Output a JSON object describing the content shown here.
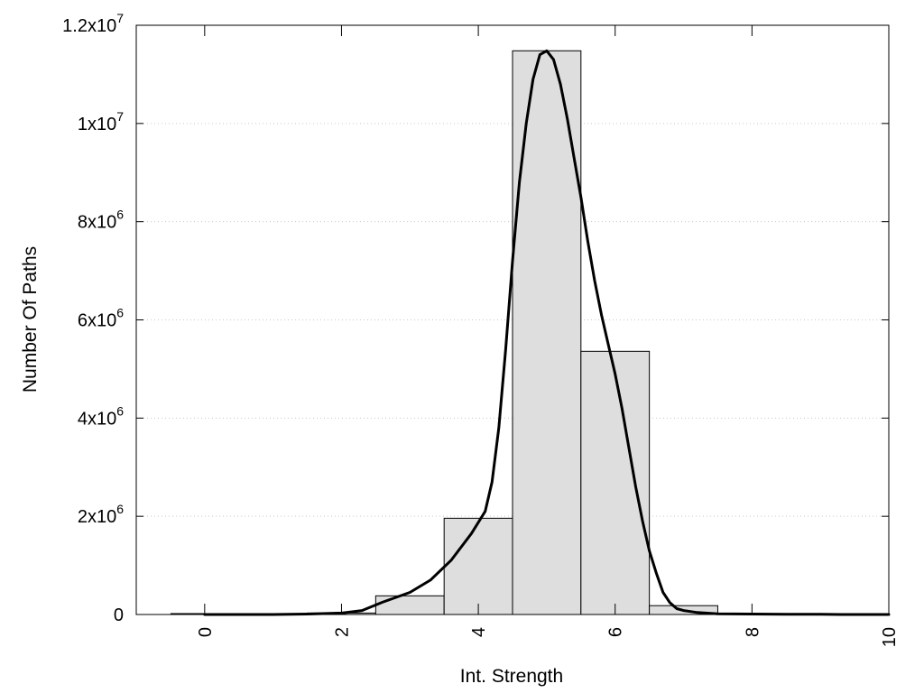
{
  "chart_data": {
    "type": "bar",
    "title": "",
    "xlabel": "Int. Strength",
    "ylabel": "Number Of Paths",
    "xlim": [
      -1,
      10
    ],
    "ylim": [
      0,
      12000000
    ],
    "grid": "horizontal dotted",
    "legend": "none",
    "x_ticks": [
      {
        "value": 0,
        "label": "0"
      },
      {
        "value": 2,
        "label": "2"
      },
      {
        "value": 4,
        "label": "4"
      },
      {
        "value": 6,
        "label": "6"
      },
      {
        "value": 8,
        "label": "8"
      },
      {
        "value": 10,
        "label": "10"
      }
    ],
    "y_ticks": [
      {
        "value": 0,
        "base": "0",
        "exp": ""
      },
      {
        "value": 2000000,
        "base": "2x10",
        "exp": "6"
      },
      {
        "value": 4000000,
        "base": "4x10",
        "exp": "6"
      },
      {
        "value": 6000000,
        "base": "6x10",
        "exp": "6"
      },
      {
        "value": 8000000,
        "base": "8x10",
        "exp": "6"
      },
      {
        "value": 10000000,
        "base": "1x10",
        "exp": "7"
      },
      {
        "value": 12000000,
        "base": "1.2x10",
        "exp": "7"
      }
    ],
    "bars": [
      {
        "x": 0,
        "value": 0
      },
      {
        "x": 1,
        "value": 0
      },
      {
        "x": 2,
        "value": 30000
      },
      {
        "x": 3,
        "value": 380000
      },
      {
        "x": 4,
        "value": 1960000
      },
      {
        "x": 5,
        "value": 11480000
      },
      {
        "x": 6,
        "value": 5360000
      },
      {
        "x": 7,
        "value": 180000
      },
      {
        "x": 8,
        "value": 0
      },
      {
        "x": 9,
        "value": 0
      }
    ],
    "curve": {
      "x": [
        0,
        1,
        1.5,
        2,
        2.3,
        2.6,
        3,
        3.3,
        3.6,
        3.9,
        4.1,
        4.2,
        4.3,
        4.4,
        4.5,
        4.6,
        4.7,
        4.8,
        4.9,
        5.0,
        5.1,
        5.2,
        5.3,
        5.4,
        5.5,
        5.6,
        5.7,
        5.8,
        5.9,
        6.0,
        6.1,
        6.2,
        6.3,
        6.4,
        6.5,
        6.6,
        6.7,
        6.8,
        6.9,
        7.0,
        7.2,
        7.5,
        8,
        8.5,
        9,
        9.3,
        9.6,
        10
      ],
      "y": [
        0,
        0,
        10000,
        30000,
        80000,
        250000,
        450000,
        700000,
        1100000,
        1650000,
        2100000,
        2700000,
        3800000,
        5400000,
        7200000,
        8800000,
        10000000,
        10900000,
        11400000,
        11480000,
        11300000,
        10800000,
        10100000,
        9300000,
        8500000,
        7600000,
        6800000,
        6100000,
        5500000,
        4900000,
        4200000,
        3400000,
        2600000,
        1900000,
        1300000,
        850000,
        450000,
        240000,
        120000,
        80000,
        40000,
        15000,
        10000,
        5000,
        3000,
        0,
        0,
        0
      ]
    }
  }
}
